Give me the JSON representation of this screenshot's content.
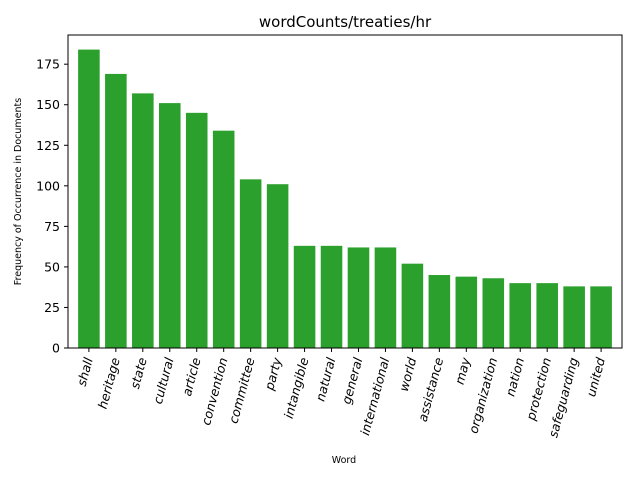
{
  "chart_data": {
    "type": "bar",
    "title": "wordCounts/treaties/hr",
    "xlabel": "Word",
    "ylabel": "Frequency of Occurrence in Documents",
    "categories": [
      "shall",
      "heritage",
      "state",
      "cultural",
      "article",
      "convention",
      "committee",
      "party",
      "intangible",
      "natural",
      "general",
      "international",
      "world",
      "assistance",
      "may",
      "organization",
      "nation",
      "protection",
      "safeguarding",
      "united"
    ],
    "values": [
      184,
      169,
      157,
      151,
      145,
      134,
      104,
      101,
      63,
      63,
      62,
      62,
      52,
      45,
      44,
      43,
      40,
      40,
      38,
      38
    ],
    "ylim": [
      0,
      193
    ],
    "yticks": [
      0,
      25,
      50,
      75,
      100,
      125,
      150,
      175
    ],
    "bar_color": "#2ca02c",
    "grid": false,
    "xtick_rotation": 75
  }
}
